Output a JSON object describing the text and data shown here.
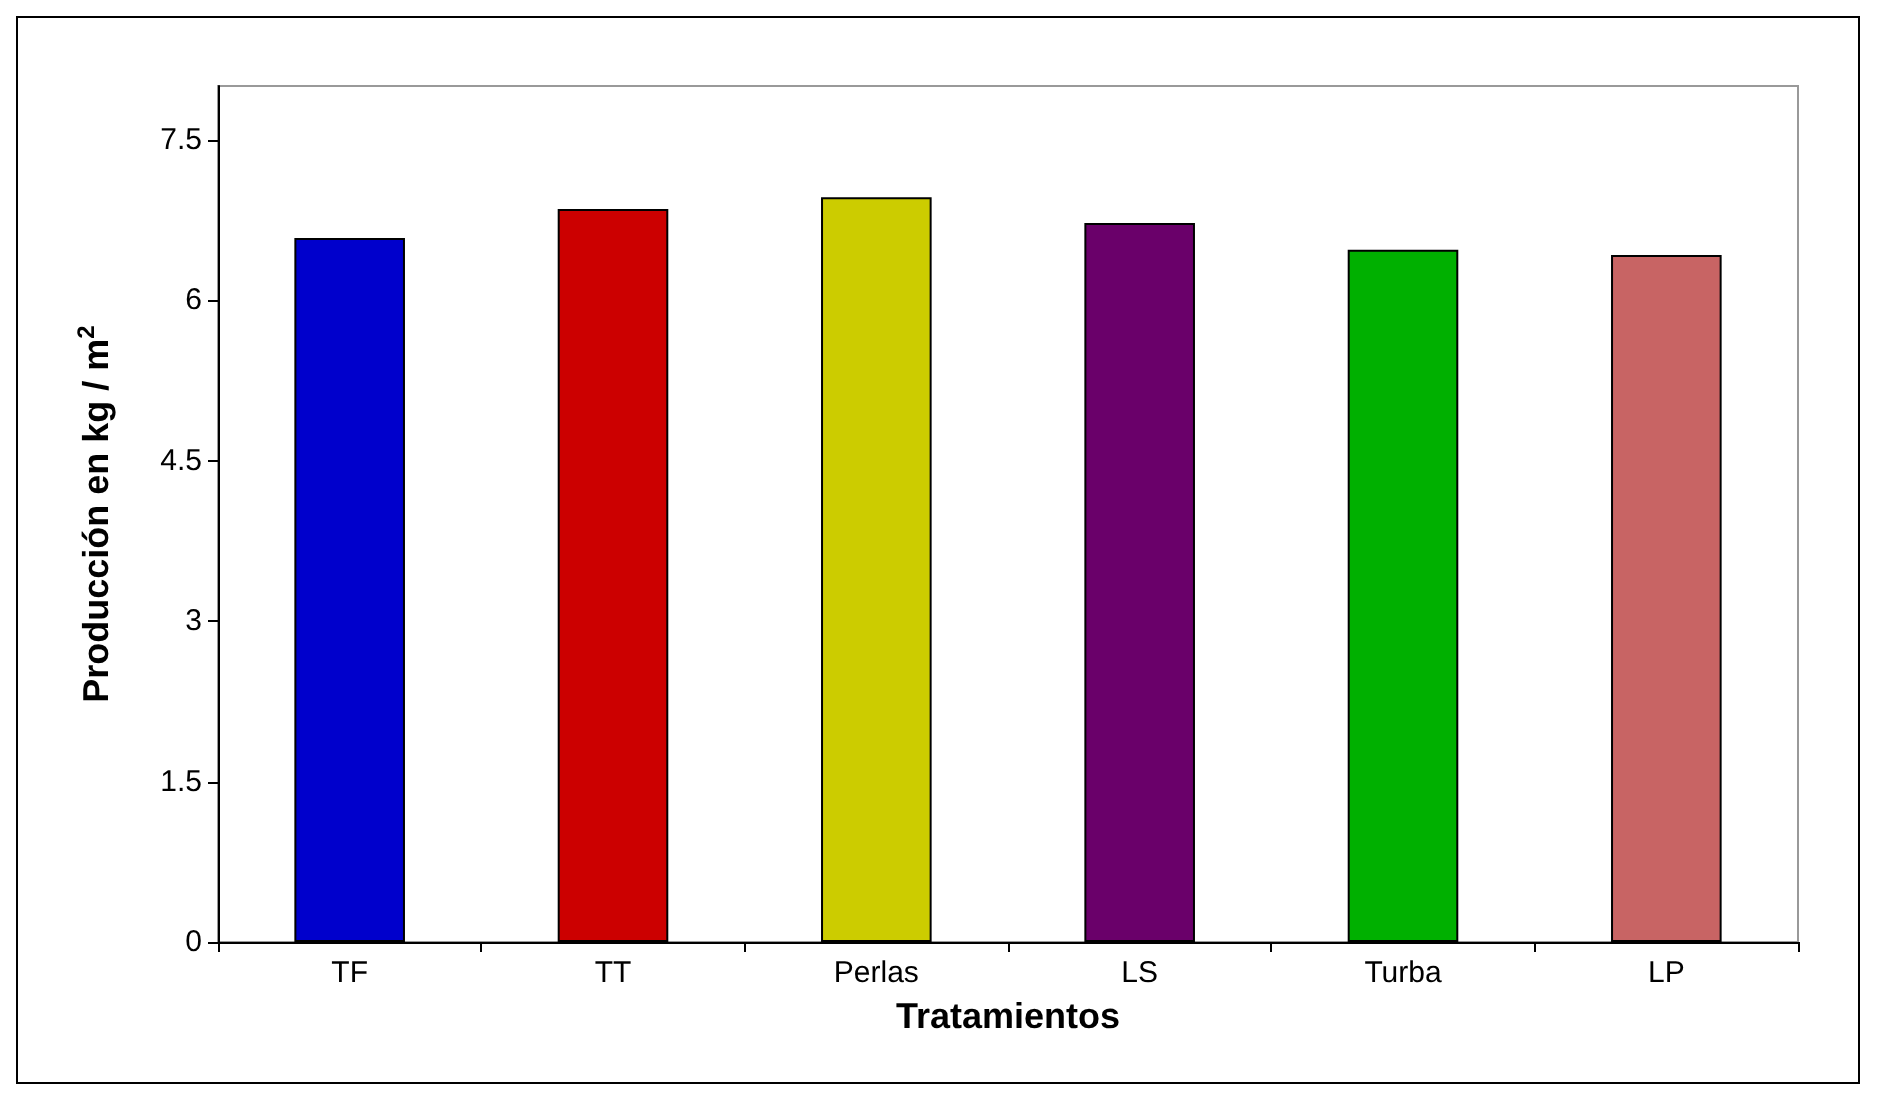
{
  "chart_data": {
    "type": "bar",
    "xlabel": "Tratamientos",
    "ylabel": "Producción en kg / m$^{2}$",
    "categories": [
      "TF",
      "TT",
      "Perlas",
      "LS",
      "Turba",
      "LP"
    ],
    "values": [
      6.58,
      6.85,
      6.96,
      6.72,
      6.47,
      6.42
    ],
    "colors": [
      "#0000cc",
      "#cc0000",
      "#cccc00",
      "#6a006a",
      "#00b000",
      "#c86464"
    ],
    "ylim": [
      0,
      8
    ],
    "yticks": [
      0,
      1.5,
      3,
      4.5,
      6,
      7.5
    ],
    "grid": false
  }
}
